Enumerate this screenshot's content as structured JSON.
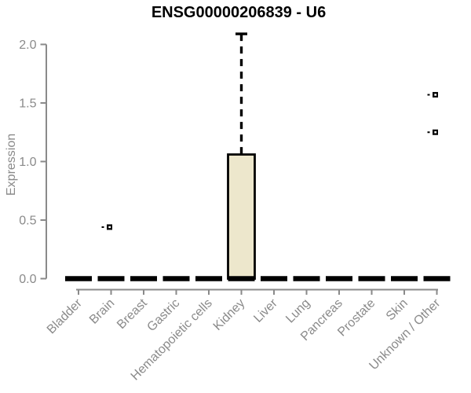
{
  "chart_data": {
    "type": "box",
    "title": "ENSG00000206839 - U6",
    "ylabel": "Expression",
    "xlabel": "",
    "categories": [
      "Bladder",
      "Brain",
      "Breast",
      "Gastric",
      "Hematopoietic cells",
      "Kidney",
      "Liver",
      "Lung",
      "Pancreas",
      "Prostate",
      "Skin",
      "Unknown / Other"
    ],
    "y_axis": {
      "ticks": [
        0.0,
        0.5,
        1.0,
        1.5,
        2.0
      ],
      "tick_labels": [
        "0.0",
        "0.5",
        "1.0",
        "1.5",
        "2.0"
      ],
      "range": [
        0.0,
        2.13
      ],
      "grid": false
    },
    "boxes": [
      {
        "category": "Bladder",
        "whisker_low": 0,
        "q1": 0,
        "median": 0,
        "q3": 0,
        "whisker_high": 0,
        "outliers": []
      },
      {
        "category": "Brain",
        "whisker_low": 0,
        "q1": 0,
        "median": 0,
        "q3": 0,
        "whisker_high": 0,
        "outliers": [
          0.44
        ]
      },
      {
        "category": "Breast",
        "whisker_low": 0,
        "q1": 0,
        "median": 0,
        "q3": 0,
        "whisker_high": 0,
        "outliers": []
      },
      {
        "category": "Gastric",
        "whisker_low": 0,
        "q1": 0,
        "median": 0,
        "q3": 0,
        "whisker_high": 0,
        "outliers": []
      },
      {
        "category": "Hematopoietic cells",
        "whisker_low": 0,
        "q1": 0,
        "median": 0,
        "q3": 0,
        "whisker_high": 0,
        "outliers": []
      },
      {
        "category": "Kidney",
        "whisker_low": 0,
        "q1": 0,
        "median": 0,
        "q3": 1.06,
        "whisker_high": 2.09,
        "outliers": []
      },
      {
        "category": "Liver",
        "whisker_low": 0,
        "q1": 0,
        "median": 0,
        "q3": 0,
        "whisker_high": 0,
        "outliers": []
      },
      {
        "category": "Lung",
        "whisker_low": 0,
        "q1": 0,
        "median": 0,
        "q3": 0,
        "whisker_high": 0,
        "outliers": []
      },
      {
        "category": "Pancreas",
        "whisker_low": 0,
        "q1": 0,
        "median": 0,
        "q3": 0,
        "whisker_high": 0,
        "outliers": []
      },
      {
        "category": "Prostate",
        "whisker_low": 0,
        "q1": 0,
        "median": 0,
        "q3": 0,
        "whisker_high": 0,
        "outliers": []
      },
      {
        "category": "Skin",
        "whisker_low": 0,
        "q1": 0,
        "median": 0,
        "q3": 0,
        "whisker_high": 0,
        "outliers": []
      },
      {
        "category": "Unknown / Other",
        "whisker_low": 0,
        "q1": 0,
        "median": 0,
        "q3": 0,
        "whisker_high": 0,
        "outliers": [
          1.57,
          1.25
        ]
      }
    ],
    "legend": "none",
    "colors": {
      "box_fill": "#EDE7CC",
      "box_border": "#000000",
      "median": "#000000",
      "whisker": "#000000",
      "outlier": "#000000",
      "axis": "#8a8a8a",
      "tick_label": "#8a8a8a",
      "title": "#000000",
      "background": "#ffffff"
    }
  }
}
